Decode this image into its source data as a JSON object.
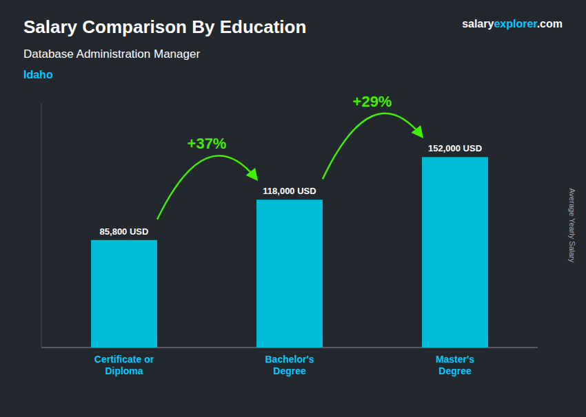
{
  "chart_data": {
    "type": "bar",
    "title": "Salary Comparison By Education",
    "subtitle": "Database Administration Manager",
    "location": "Idaho",
    "ylabel": "Average Yearly Salary",
    "brand": [
      "salary",
      "explorer",
      ".com"
    ],
    "categories": [
      "Certificate or\nDiploma",
      "Bachelor's\nDegree",
      "Master's\nDegree"
    ],
    "values": [
      85800,
      118000,
      152000
    ],
    "value_labels": [
      "85,800 USD",
      "118,000 USD",
      "152,000 USD"
    ],
    "data_labels": true,
    "color": "#00bcd4",
    "annotations": [
      {
        "text": "+37%",
        "color": "#44ee00"
      },
      {
        "text": "+29%",
        "color": "#44ee00"
      }
    ],
    "ylim": [
      0,
      195000
    ],
    "tick_labels": "x",
    "grid": false
  }
}
